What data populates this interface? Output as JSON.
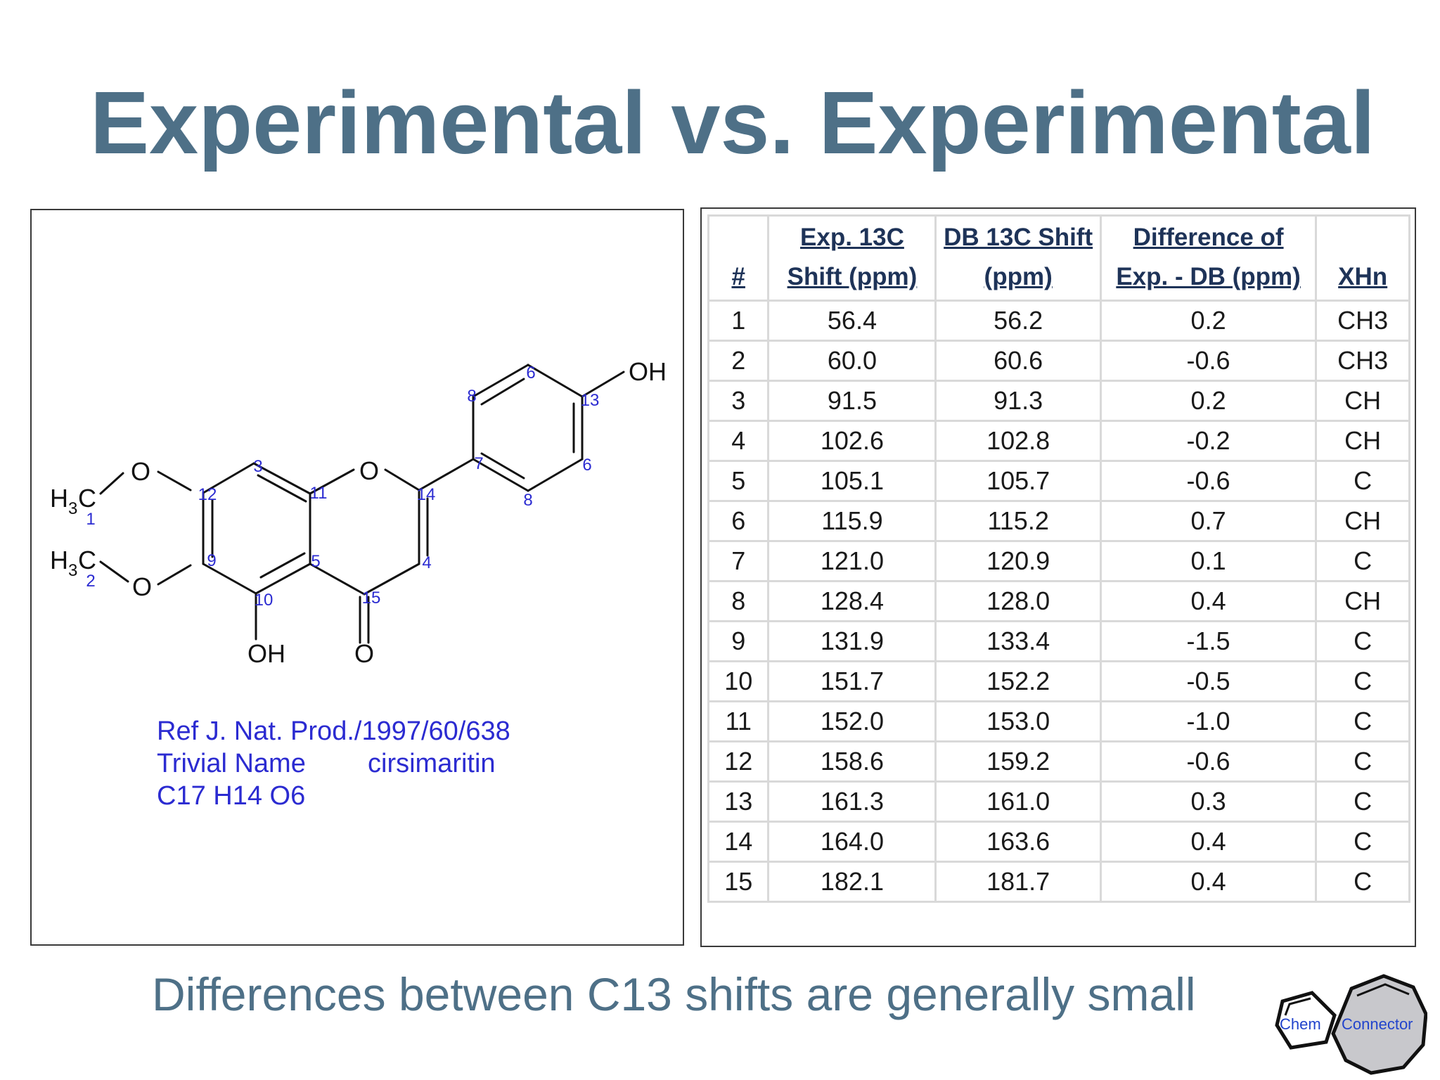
{
  "title": "Experimental vs. Experimental",
  "molecule": {
    "atom_labels": {
      "o_methoxy_top": "O",
      "o_methoxy_bottom": "O",
      "o_ring": "O",
      "o_carbonyl": "O",
      "oh_top_right": "OH",
      "oh_bottom": "OH",
      "h3c_top_h": "H",
      "h3c_top_sub": "3",
      "h3c_top_c": "C",
      "h3c_bottom_h": "H",
      "h3c_bottom_sub": "3",
      "h3c_bottom_c": "C"
    },
    "numbers": {
      "n1": "1",
      "n2": "2",
      "n3": "3",
      "n4": "4",
      "n5": "5",
      "n6a": "6",
      "n6b": "6",
      "n7": "7",
      "n8a": "8",
      "n8b": "8",
      "n9": "9",
      "n10": "10",
      "n11": "11",
      "n12": "12",
      "n13": "13",
      "n14": "14",
      "n15": "15"
    },
    "colors": {
      "bond": "#111111",
      "number": "#2b2bd1"
    }
  },
  "reference": {
    "line1": "Ref  J. Nat. Prod./1997/60/638",
    "trivial_label": "Trivial Name",
    "trivial_value": "cirsimaritin",
    "formula": "C17 H14 O6"
  },
  "table": {
    "headers": {
      "num": "#",
      "exp_l1": "Exp. 13C",
      "exp_l2": "Shift (ppm)",
      "db_l1": "DB 13C Shift",
      "db_l2": "(ppm)",
      "diff_l1": "Difference of",
      "diff_l2": "Exp. - DB (ppm)",
      "xhn": "XHn"
    },
    "rows": [
      {
        "num": "1",
        "exp": "56.4",
        "db": "56.2",
        "diff": "0.2",
        "xhn": "CH3"
      },
      {
        "num": "2",
        "exp": "60.0",
        "db": "60.6",
        "diff": "-0.6",
        "xhn": "CH3"
      },
      {
        "num": "3",
        "exp": "91.5",
        "db": "91.3",
        "diff": "0.2",
        "xhn": "CH"
      },
      {
        "num": "4",
        "exp": "102.6",
        "db": "102.8",
        "diff": "-0.2",
        "xhn": "CH"
      },
      {
        "num": "5",
        "exp": "105.1",
        "db": "105.7",
        "diff": "-0.6",
        "xhn": "C"
      },
      {
        "num": "6",
        "exp": "115.9",
        "db": "115.2",
        "diff": "0.7",
        "xhn": "CH"
      },
      {
        "num": "7",
        "exp": "121.0",
        "db": "120.9",
        "diff": "0.1",
        "xhn": "C"
      },
      {
        "num": "8",
        "exp": "128.4",
        "db": "128.0",
        "diff": "0.4",
        "xhn": "CH"
      },
      {
        "num": "9",
        "exp": "131.9",
        "db": "133.4",
        "diff": "-1.5",
        "xhn": "C"
      },
      {
        "num": "10",
        "exp": "151.7",
        "db": "152.2",
        "diff": "-0.5",
        "xhn": "C"
      },
      {
        "num": "11",
        "exp": "152.0",
        "db": "153.0",
        "diff": "-1.0",
        "xhn": "C"
      },
      {
        "num": "12",
        "exp": "158.6",
        "db": "159.2",
        "diff": "-0.6",
        "xhn": "C"
      },
      {
        "num": "13",
        "exp": "161.3",
        "db": "161.0",
        "diff": "0.3",
        "xhn": "C"
      },
      {
        "num": "14",
        "exp": "164.0",
        "db": "163.6",
        "diff": "0.4",
        "xhn": "C"
      },
      {
        "num": "15",
        "exp": "182.1",
        "db": "181.7",
        "diff": "0.4",
        "xhn": "C"
      }
    ]
  },
  "footer": "Differences between C13 shifts are generally small",
  "logo": {
    "word1": "Chem",
    "word2": "Connector",
    "color": "#2244cc"
  },
  "colors": {
    "title": "#4e7087",
    "header_text": "#1e3358",
    "grid": "#d9d9d9"
  }
}
